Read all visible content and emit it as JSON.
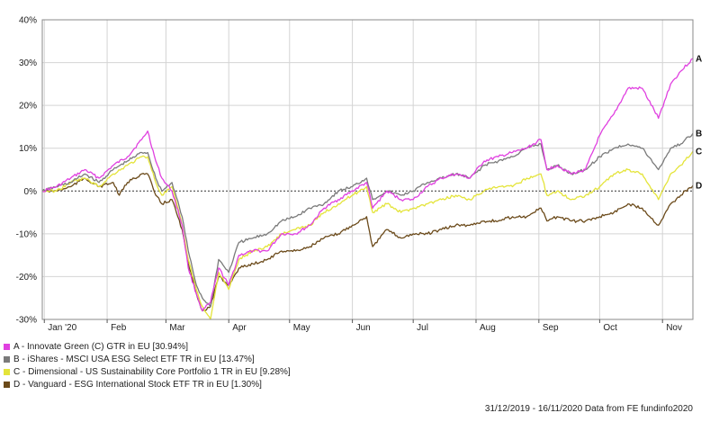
{
  "chart_data": {
    "type": "line",
    "ylim": [
      -30,
      40
    ],
    "yticks": [
      -30,
      -20,
      -10,
      0,
      10,
      20,
      30,
      40
    ],
    "ytick_labels": [
      "-30%",
      "-20%",
      "-10%",
      "0%",
      "10%",
      "20%",
      "30%",
      "40%"
    ],
    "xlim": [
      "2019-12-31",
      "2020-11-16"
    ],
    "xticks": [
      {
        "date": "2020-01-01",
        "label": "Jan '20"
      },
      {
        "date": "2020-02-01",
        "label": "Feb"
      },
      {
        "date": "2020-03-01",
        "label": "Mar"
      },
      {
        "date": "2020-04-01",
        "label": "Apr"
      },
      {
        "date": "2020-05-01",
        "label": "May"
      },
      {
        "date": "2020-06-01",
        "label": "Jun"
      },
      {
        "date": "2020-07-01",
        "label": "Jul"
      },
      {
        "date": "2020-08-01",
        "label": "Aug"
      },
      {
        "date": "2020-09-01",
        "label": "Sep"
      },
      {
        "date": "2020-10-01",
        "label": "Oct"
      },
      {
        "date": "2020-11-01",
        "label": "Nov"
      }
    ],
    "grid": true,
    "legend_position": "bottom-left",
    "series": [
      {
        "id": "A",
        "name": "A - Innovate Green (C) GTR in EU [30.94%]",
        "color": "#e040e0",
        "points": [
          [
            "2019-12-31",
            0
          ],
          [
            "2020-01-07",
            1
          ],
          [
            "2020-01-14",
            3
          ],
          [
            "2020-01-21",
            5
          ],
          [
            "2020-01-28",
            3
          ],
          [
            "2020-02-04",
            6
          ],
          [
            "2020-02-11",
            8
          ],
          [
            "2020-02-18",
            12
          ],
          [
            "2020-02-21",
            14
          ],
          [
            "2020-02-25",
            7
          ],
          [
            "2020-02-28",
            3
          ],
          [
            "2020-03-04",
            0
          ],
          [
            "2020-03-09",
            -8
          ],
          [
            "2020-03-12",
            -18
          ],
          [
            "2020-03-16",
            -24
          ],
          [
            "2020-03-19",
            -28
          ],
          [
            "2020-03-23",
            -26
          ],
          [
            "2020-03-27",
            -18
          ],
          [
            "2020-04-01",
            -22
          ],
          [
            "2020-04-06",
            -15
          ],
          [
            "2020-04-13",
            -14
          ],
          [
            "2020-04-20",
            -14
          ],
          [
            "2020-04-27",
            -10
          ],
          [
            "2020-05-04",
            -10
          ],
          [
            "2020-05-11",
            -8
          ],
          [
            "2020-05-18",
            -4
          ],
          [
            "2020-05-25",
            -2
          ],
          [
            "2020-06-01",
            0
          ],
          [
            "2020-06-08",
            2
          ],
          [
            "2020-06-11",
            -4
          ],
          [
            "2020-06-18",
            0
          ],
          [
            "2020-06-25",
            -2
          ],
          [
            "2020-07-01",
            -2
          ],
          [
            "2020-07-08",
            1
          ],
          [
            "2020-07-15",
            3
          ],
          [
            "2020-07-22",
            4
          ],
          [
            "2020-07-29",
            3
          ],
          [
            "2020-08-05",
            7
          ],
          [
            "2020-08-12",
            8
          ],
          [
            "2020-08-19",
            9
          ],
          [
            "2020-08-26",
            10
          ],
          [
            "2020-09-02",
            12
          ],
          [
            "2020-09-05",
            5
          ],
          [
            "2020-09-10",
            6
          ],
          [
            "2020-09-17",
            4
          ],
          [
            "2020-09-24",
            5
          ],
          [
            "2020-10-01",
            13
          ],
          [
            "2020-10-08",
            18
          ],
          [
            "2020-10-15",
            24
          ],
          [
            "2020-10-22",
            24
          ],
          [
            "2020-10-30",
            17
          ],
          [
            "2020-11-05",
            25
          ],
          [
            "2020-11-10",
            28
          ],
          [
            "2020-11-16",
            30.94
          ]
        ]
      },
      {
        "id": "B",
        "name": "B - iShares - MSCI USA ESG Select ETF TR in EU [13.47%]",
        "color": "#7a7a7a",
        "points": [
          [
            "2019-12-31",
            0
          ],
          [
            "2020-01-07",
            1
          ],
          [
            "2020-01-14",
            2
          ],
          [
            "2020-01-21",
            4
          ],
          [
            "2020-01-28",
            2
          ],
          [
            "2020-02-04",
            5
          ],
          [
            "2020-02-11",
            7
          ],
          [
            "2020-02-18",
            9
          ],
          [
            "2020-02-21",
            9
          ],
          [
            "2020-02-25",
            3
          ],
          [
            "2020-02-28",
            0
          ],
          [
            "2020-03-04",
            2
          ],
          [
            "2020-03-09",
            -6
          ],
          [
            "2020-03-12",
            -14
          ],
          [
            "2020-03-16",
            -22
          ],
          [
            "2020-03-19",
            -25
          ],
          [
            "2020-03-23",
            -27
          ],
          [
            "2020-03-27",
            -16
          ],
          [
            "2020-04-01",
            -19
          ],
          [
            "2020-04-06",
            -12
          ],
          [
            "2020-04-13",
            -11
          ],
          [
            "2020-04-20",
            -10
          ],
          [
            "2020-04-27",
            -7
          ],
          [
            "2020-05-04",
            -6
          ],
          [
            "2020-05-11",
            -4
          ],
          [
            "2020-05-18",
            -3
          ],
          [
            "2020-05-25",
            0
          ],
          [
            "2020-06-01",
            1
          ],
          [
            "2020-06-08",
            3
          ],
          [
            "2020-06-11",
            -2
          ],
          [
            "2020-06-18",
            0
          ],
          [
            "2020-06-25",
            -1
          ],
          [
            "2020-07-01",
            0
          ],
          [
            "2020-07-08",
            2
          ],
          [
            "2020-07-15",
            3
          ],
          [
            "2020-07-22",
            4
          ],
          [
            "2020-07-29",
            3
          ],
          [
            "2020-08-05",
            6
          ],
          [
            "2020-08-12",
            7
          ],
          [
            "2020-08-19",
            8
          ],
          [
            "2020-08-26",
            10
          ],
          [
            "2020-09-02",
            11
          ],
          [
            "2020-09-05",
            5
          ],
          [
            "2020-09-10",
            6
          ],
          [
            "2020-09-17",
            4
          ],
          [
            "2020-09-24",
            5
          ],
          [
            "2020-10-01",
            8
          ],
          [
            "2020-10-08",
            10
          ],
          [
            "2020-10-15",
            11
          ],
          [
            "2020-10-22",
            10
          ],
          [
            "2020-10-30",
            5
          ],
          [
            "2020-11-05",
            10
          ],
          [
            "2020-11-10",
            11
          ],
          [
            "2020-11-16",
            13.47
          ]
        ]
      },
      {
        "id": "C",
        "name": "C - Dimensional - US Sustainability Core Portfolio 1 TR in EU [9.28%]",
        "color": "#e4e43a",
        "points": [
          [
            "2019-12-31",
            0
          ],
          [
            "2020-01-07",
            0
          ],
          [
            "2020-01-14",
            2
          ],
          [
            "2020-01-21",
            3
          ],
          [
            "2020-01-28",
            1
          ],
          [
            "2020-02-04",
            4
          ],
          [
            "2020-02-11",
            6
          ],
          [
            "2020-02-18",
            8
          ],
          [
            "2020-02-21",
            8
          ],
          [
            "2020-02-25",
            2
          ],
          [
            "2020-02-28",
            -1
          ],
          [
            "2020-03-04",
            1
          ],
          [
            "2020-03-09",
            -8
          ],
          [
            "2020-03-12",
            -16
          ],
          [
            "2020-03-16",
            -23
          ],
          [
            "2020-03-19",
            -27
          ],
          [
            "2020-03-23",
            -30
          ],
          [
            "2020-03-27",
            -19
          ],
          [
            "2020-04-01",
            -23
          ],
          [
            "2020-04-06",
            -16
          ],
          [
            "2020-04-13",
            -14
          ],
          [
            "2020-04-20",
            -13
          ],
          [
            "2020-04-27",
            -10
          ],
          [
            "2020-05-04",
            -9
          ],
          [
            "2020-05-11",
            -8
          ],
          [
            "2020-05-18",
            -5
          ],
          [
            "2020-05-25",
            -3
          ],
          [
            "2020-06-01",
            -1
          ],
          [
            "2020-06-08",
            1
          ],
          [
            "2020-06-11",
            -5
          ],
          [
            "2020-06-18",
            -3
          ],
          [
            "2020-06-25",
            -5
          ],
          [
            "2020-07-01",
            -4
          ],
          [
            "2020-07-08",
            -3
          ],
          [
            "2020-07-15",
            -2
          ],
          [
            "2020-07-22",
            -1
          ],
          [
            "2020-07-29",
            -2
          ],
          [
            "2020-08-05",
            0
          ],
          [
            "2020-08-12",
            1
          ],
          [
            "2020-08-19",
            1
          ],
          [
            "2020-08-26",
            3
          ],
          [
            "2020-09-02",
            4
          ],
          [
            "2020-09-05",
            -1
          ],
          [
            "2020-09-10",
            0
          ],
          [
            "2020-09-17",
            -2
          ],
          [
            "2020-09-24",
            -1
          ],
          [
            "2020-10-01",
            1
          ],
          [
            "2020-10-08",
            4
          ],
          [
            "2020-10-15",
            5
          ],
          [
            "2020-10-22",
            4
          ],
          [
            "2020-10-30",
            -2
          ],
          [
            "2020-11-05",
            4
          ],
          [
            "2020-11-10",
            6
          ],
          [
            "2020-11-16",
            9.28
          ]
        ]
      },
      {
        "id": "D",
        "name": "D - Vanguard - ESG International Stock ETF TR in EU [1.30%]",
        "color": "#6b4a1a",
        "points": [
          [
            "2019-12-31",
            0
          ],
          [
            "2020-01-07",
            0
          ],
          [
            "2020-01-14",
            1
          ],
          [
            "2020-01-21",
            3
          ],
          [
            "2020-01-28",
            1
          ],
          [
            "2020-02-04",
            2
          ],
          [
            "2020-02-07",
            -1
          ],
          [
            "2020-02-11",
            2
          ],
          [
            "2020-02-18",
            4
          ],
          [
            "2020-02-21",
            4
          ],
          [
            "2020-02-25",
            -1
          ],
          [
            "2020-02-28",
            -3
          ],
          [
            "2020-03-04",
            -2
          ],
          [
            "2020-03-09",
            -9
          ],
          [
            "2020-03-12",
            -17
          ],
          [
            "2020-03-16",
            -24
          ],
          [
            "2020-03-19",
            -28
          ],
          [
            "2020-03-23",
            -27
          ],
          [
            "2020-03-27",
            -20
          ],
          [
            "2020-04-01",
            -22
          ],
          [
            "2020-04-06",
            -18
          ],
          [
            "2020-04-13",
            -17
          ],
          [
            "2020-04-20",
            -16
          ],
          [
            "2020-04-27",
            -14
          ],
          [
            "2020-05-04",
            -14
          ],
          [
            "2020-05-11",
            -13
          ],
          [
            "2020-05-18",
            -11
          ],
          [
            "2020-05-25",
            -10
          ],
          [
            "2020-06-01",
            -8
          ],
          [
            "2020-06-08",
            -6
          ],
          [
            "2020-06-11",
            -13
          ],
          [
            "2020-06-18",
            -9
          ],
          [
            "2020-06-25",
            -11
          ],
          [
            "2020-07-01",
            -10
          ],
          [
            "2020-07-08",
            -10
          ],
          [
            "2020-07-15",
            -9
          ],
          [
            "2020-07-22",
            -8
          ],
          [
            "2020-07-29",
            -8
          ],
          [
            "2020-08-05",
            -7
          ],
          [
            "2020-08-12",
            -7
          ],
          [
            "2020-08-19",
            -6
          ],
          [
            "2020-08-26",
            -6
          ],
          [
            "2020-09-02",
            -4
          ],
          [
            "2020-09-05",
            -7
          ],
          [
            "2020-09-10",
            -6
          ],
          [
            "2020-09-17",
            -7
          ],
          [
            "2020-09-24",
            -7
          ],
          [
            "2020-10-01",
            -6
          ],
          [
            "2020-10-08",
            -5
          ],
          [
            "2020-10-15",
            -3
          ],
          [
            "2020-10-22",
            -4
          ],
          [
            "2020-10-30",
            -8
          ],
          [
            "2020-11-05",
            -3
          ],
          [
            "2020-11-10",
            -1
          ],
          [
            "2020-11-16",
            1.3
          ]
        ]
      }
    ],
    "end_labels": [
      "A",
      "B",
      "C",
      "D"
    ]
  },
  "footer": "31/12/2019 - 16/11/2020 Data from FE fundinfo2020"
}
